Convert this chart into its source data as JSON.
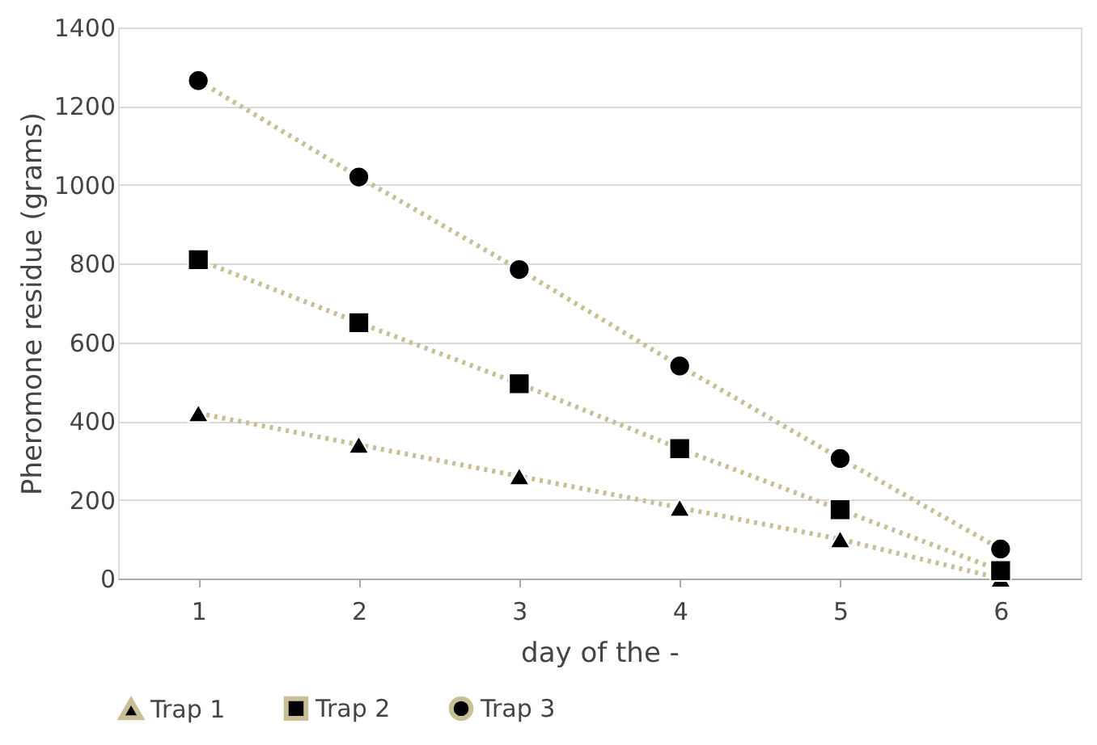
{
  "chart_data": {
    "type": "line",
    "xlabel": "day of the -",
    "ylabel": "Pheromone residue (grams)",
    "categories": [
      "1",
      "2",
      "3",
      "4",
      "5",
      "6"
    ],
    "series": [
      {
        "name": "Trap 1",
        "color": "#c9bf97",
        "marker": "triangle",
        "values": [
          420,
          340,
          260,
          180,
          100,
          0
        ]
      },
      {
        "name": "Trap 2",
        "color": "#c9bf97",
        "marker": "square",
        "values": [
          810,
          650,
          495,
          330,
          175,
          20
        ]
      },
      {
        "name": "Trap 3",
        "color": "#c9bf97",
        "marker": "circle",
        "values": [
          1265,
          1020,
          785,
          540,
          305,
          75
        ]
      }
    ],
    "ylim": [
      0,
      1400
    ],
    "yticks": [
      0,
      200,
      400,
      600,
      800,
      1000,
      1200,
      1400
    ],
    "grid": "y",
    "legend": "bottom",
    "line_style": "dotted"
  }
}
